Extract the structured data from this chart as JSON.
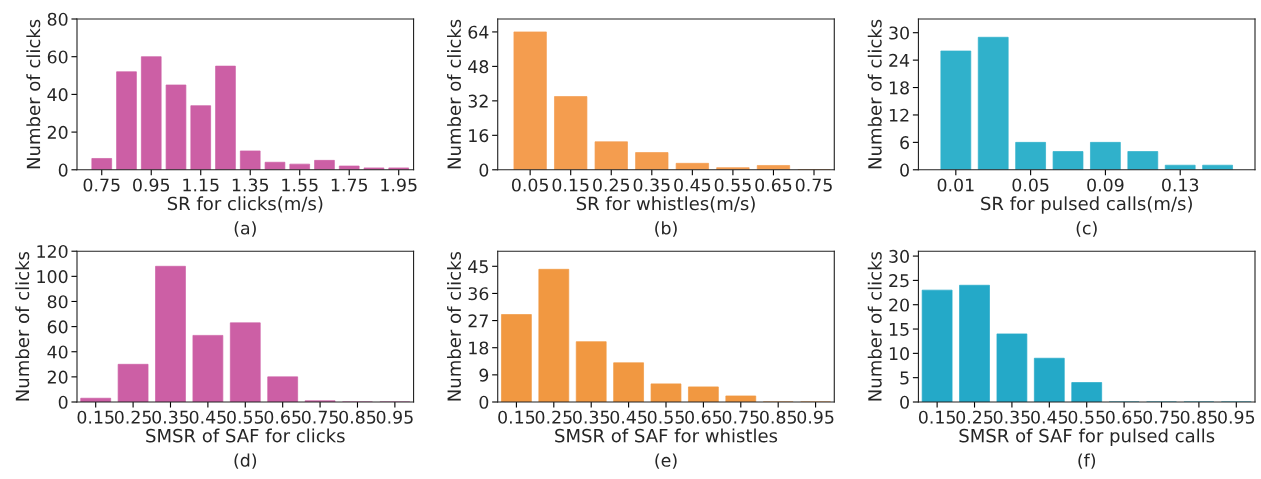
{
  "chart_data": [
    {
      "type": "bar",
      "xlabel": "SR for clicks(m/s)",
      "ylabel": "Number of clicks",
      "annotations": [
        "(a)"
      ],
      "x": [
        0.75,
        0.85,
        0.95,
        1.05,
        1.15,
        1.25,
        1.35,
        1.45,
        1.55,
        1.65,
        1.75,
        1.85,
        1.95
      ],
      "values": [
        6,
        52,
        60,
        45,
        34,
        55,
        10,
        4,
        3,
        5,
        2,
        1,
        1
      ],
      "color": "#cc5fa5",
      "xlim": [
        0.65,
        2.01
      ],
      "xticks": [
        0.75,
        0.95,
        1.15,
        1.35,
        1.55,
        1.75,
        1.95
      ],
      "ylim": [
        0,
        80
      ],
      "yticks": [
        0,
        20,
        40,
        60,
        80
      ],
      "grid": false,
      "legend": false
    },
    {
      "type": "bar",
      "xlabel": "SR for whistles(m/s)",
      "ylabel": "Number of clicks",
      "annotations": [
        "(b)"
      ],
      "x": [
        0.05,
        0.15,
        0.25,
        0.35,
        0.45,
        0.55,
        0.65,
        0.75
      ],
      "values": [
        64,
        34,
        13,
        8,
        3,
        1,
        2,
        0
      ],
      "color": "#f49d4f",
      "xlim": [
        -0.03,
        0.8
      ],
      "xticks": [
        0.05,
        0.15,
        0.25,
        0.35,
        0.45,
        0.55,
        0.65,
        0.75
      ],
      "ylim": [
        0,
        70
      ],
      "yticks": [
        0,
        16,
        32,
        48,
        64
      ],
      "grid": false,
      "legend": false
    },
    {
      "type": "bar",
      "xlabel": "SR for pulsed calls(m/s)",
      "ylabel": "Number of clicks",
      "annotations": [
        "(c)"
      ],
      "x": [
        0.01,
        0.03,
        0.05,
        0.07,
        0.09,
        0.11,
        0.13,
        0.15
      ],
      "values": [
        26,
        29,
        6,
        4,
        6,
        4,
        1,
        1
      ],
      "color": "#30b1cb",
      "xlim": [
        -0.01,
        0.17
      ],
      "xticks": [
        0.01,
        0.05,
        0.09,
        0.13
      ],
      "ylim": [
        0,
        33
      ],
      "yticks": [
        0,
        6,
        12,
        18,
        24,
        30
      ],
      "grid": false,
      "legend": false
    },
    {
      "type": "bar",
      "xlabel": "SMSR of SAF for clicks",
      "ylabel": "Number of clicks",
      "annotations": [
        "(d)"
      ],
      "x": [
        0.15,
        0.25,
        0.35,
        0.45,
        0.55,
        0.65,
        0.75,
        0.85,
        0.95
      ],
      "values": [
        3,
        30,
        108,
        53,
        63,
        20,
        1,
        0,
        0
      ],
      "color": "#cc5fa5",
      "xlim": [
        0.1,
        1.0
      ],
      "xticks": [
        0.15,
        0.25,
        0.35,
        0.45,
        0.55,
        0.65,
        0.75,
        0.85,
        0.95
      ],
      "ylim": [
        0,
        120
      ],
      "yticks": [
        0,
        20,
        40,
        60,
        80,
        100,
        120
      ],
      "grid": false,
      "legend": false
    },
    {
      "type": "bar",
      "xlabel": "SMSR of SAF for whistles",
      "ylabel": "Number of clicks",
      "annotations": [
        "(e)"
      ],
      "x": [
        0.15,
        0.25,
        0.35,
        0.45,
        0.55,
        0.65,
        0.75,
        0.85,
        0.95
      ],
      "values": [
        29,
        44,
        20,
        13,
        6,
        5,
        2,
        0,
        0
      ],
      "color": "#f19841",
      "xlim": [
        0.1,
        1.0
      ],
      "xticks": [
        0.15,
        0.25,
        0.35,
        0.45,
        0.55,
        0.65,
        0.75,
        0.85,
        0.95
      ],
      "ylim": [
        0,
        50
      ],
      "yticks": [
        0,
        9,
        18,
        27,
        36,
        45
      ],
      "grid": false,
      "legend": false
    },
    {
      "type": "bar",
      "xlabel": "SMSR of SAF for pulsed calls",
      "ylabel": "Number of clicks",
      "annotations": [
        "(f)"
      ],
      "x": [
        0.15,
        0.25,
        0.35,
        0.45,
        0.55,
        0.65,
        0.75,
        0.85,
        0.95
      ],
      "values": [
        23,
        24,
        14,
        9,
        4,
        0,
        0,
        0,
        0
      ],
      "color": "#24a9c8",
      "xlim": [
        0.1,
        1.0
      ],
      "xticks": [
        0.15,
        0.25,
        0.35,
        0.45,
        0.55,
        0.65,
        0.75,
        0.85,
        0.95
      ],
      "ylim": [
        0,
        31
      ],
      "yticks": [
        0,
        5,
        10,
        15,
        20,
        25,
        30
      ],
      "grid": false,
      "legend": false
    }
  ]
}
